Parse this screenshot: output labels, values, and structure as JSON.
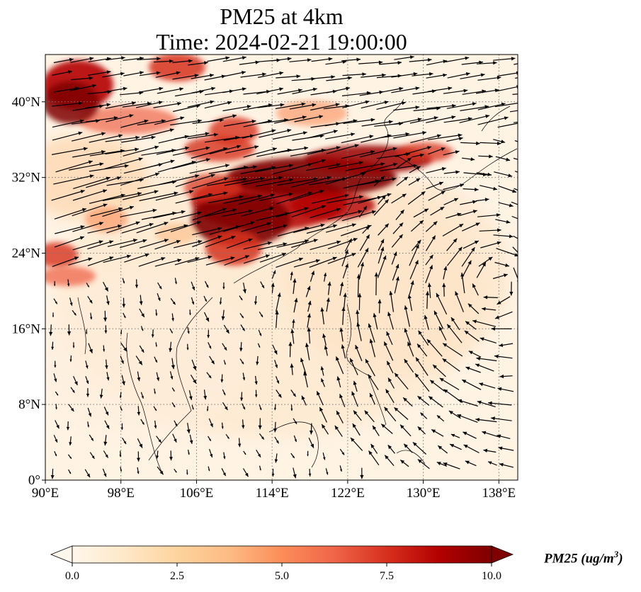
{
  "title_line1": "PM25 at 4km",
  "title_line2": "Time: 2024-02-21 19:00:00",
  "map": {
    "projection": "PlateCarree",
    "lon_range": [
      90,
      140
    ],
    "lat_range": [
      0,
      45
    ],
    "gridlines": "dotted",
    "lon_ticks": [
      {
        "value": 90,
        "label": "90°E"
      },
      {
        "value": 98,
        "label": "98°E"
      },
      {
        "value": 106,
        "label": "106°E"
      },
      {
        "value": 114,
        "label": "114°E"
      },
      {
        "value": 122,
        "label": "122°E"
      },
      {
        "value": 130,
        "label": "130°E"
      },
      {
        "value": 138,
        "label": "138°E"
      }
    ],
    "lat_ticks": [
      {
        "value": 0,
        "label": "0°"
      },
      {
        "value": 8,
        "label": "8°N"
      },
      {
        "value": 16,
        "label": "16°N"
      },
      {
        "value": 24,
        "label": "24°N"
      },
      {
        "value": 32,
        "label": "32°N"
      },
      {
        "value": 40,
        "label": "40°N"
      }
    ],
    "field": "PM25",
    "vectors": "wind arrows"
  },
  "colorbar": {
    "cmap": "OrRd",
    "min": 0.0,
    "max": 10.0,
    "extend": "both",
    "ticks": [
      {
        "value": 0.0,
        "label": "0.0"
      },
      {
        "value": 2.5,
        "label": "2.5"
      },
      {
        "value": 5.0,
        "label": "5.0"
      },
      {
        "value": 7.5,
        "label": "7.5"
      },
      {
        "value": 10.0,
        "label": "10.0"
      }
    ],
    "label_main": "PM25 (ug/m",
    "label_sup": "3",
    "label_end": ")"
  },
  "colors": {
    "low": "#fff7ec",
    "mid": "#fdbb84",
    "high": "#d7301f",
    "max": "#7f0000"
  }
}
